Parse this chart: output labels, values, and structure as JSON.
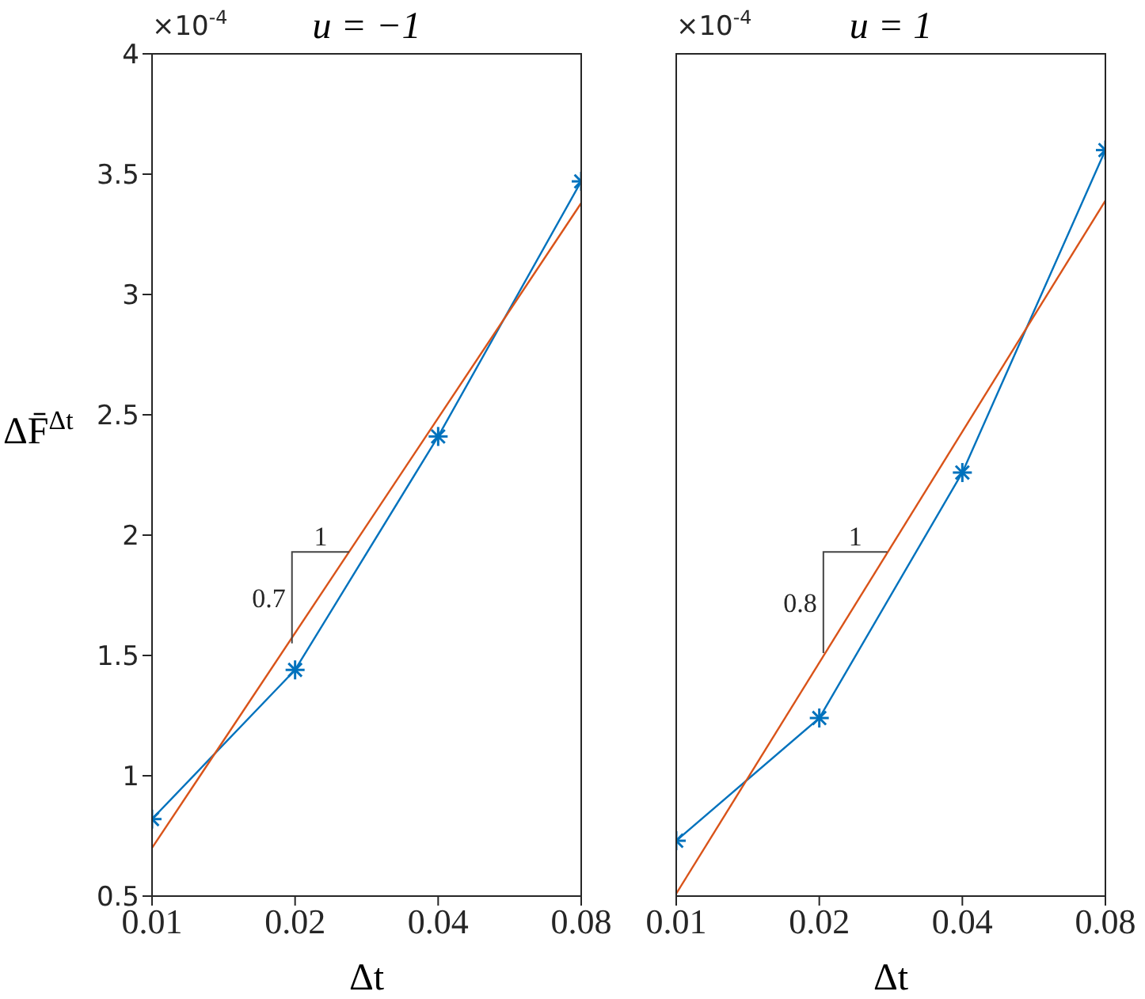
{
  "chart_data": [
    {
      "type": "line",
      "title": "u = −1",
      "xlabel": "Δt",
      "ylabel": "ΔF̄$^{Δt}$",
      "annotations": [
        "×10$^{-4}$",
        {
          "text": "1",
          "x": 0.026,
          "y": 1.93
        },
        {
          "text": "0.7",
          "x": 0.0197,
          "y": 1.55
        }
      ],
      "log": "x",
      "xlim": [
        0.01,
        0.08
      ],
      "xticks": [
        0.01,
        0.02,
        0.04,
        0.08
      ],
      "ylim": [
        0.5,
        4
      ],
      "yticks": [
        0.5,
        1,
        1.5,
        2,
        2.5,
        3,
        3.5,
        4
      ],
      "grid": false,
      "line_style": "solid",
      "series": [
        {
          "color": "#0072bd",
          "marker": "cross",
          "x": [
            0.01,
            0.02,
            0.04,
            0.08
          ],
          "values": [
            0.82,
            1.44,
            2.41,
            3.47
          ]
        },
        {
          "color": "#d95319",
          "marker": "none",
          "x": [
            0.01,
            0.08
          ],
          "values": [
            0.7,
            3.38
          ]
        }
      ]
    },
    {
      "type": "line",
      "title": "u = 1",
      "xlabel": "Δt",
      "annotations": [
        "×10$^{-4}$",
        {
          "text": "1",
          "x": 0.0278,
          "y": 1.93
        },
        {
          "text": "0.8",
          "x": 0.0204,
          "y": 1.51
        }
      ],
      "log": "x",
      "xlim": [
        0.01,
        0.08
      ],
      "xticks": [
        0.01,
        0.02,
        0.04,
        0.08
      ],
      "ylim": [
        0.5,
        4
      ],
      "yticks": [
        0.5,
        1,
        1.5,
        2,
        2.5,
        3,
        3.5,
        4
      ],
      "tick_labels": "x",
      "grid": false,
      "line_style": "solid",
      "series": [
        {
          "color": "#0072bd",
          "marker": "cross",
          "x": [
            0.01,
            0.02,
            0.04,
            0.08
          ],
          "values": [
            0.73,
            1.24,
            2.26,
            3.6
          ]
        },
        {
          "color": "#d95319",
          "marker": "none",
          "x": [
            0.01,
            0.08
          ],
          "values": [
            0.51,
            3.39
          ]
        }
      ]
    }
  ]
}
